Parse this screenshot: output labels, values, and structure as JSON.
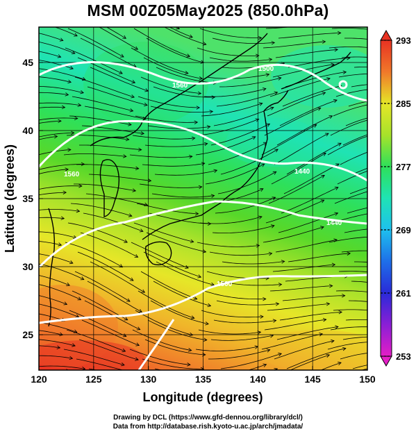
{
  "title": "MSM 00Z05May2025 (850.0hPa)",
  "chart_data": {
    "type": "map",
    "title": "MSM 00Z05May2025 (850.0hPa)",
    "xlabel": "Longitude (degrees)",
    "ylabel": "Latitude  (degrees)",
    "xlim": [
      120,
      150
    ],
    "ylim": [
      22.4,
      47.6
    ],
    "x_ticks": [
      120,
      125,
      130,
      135,
      140,
      145,
      150
    ],
    "x_tick_labels": [
      "120",
      "125",
      "130",
      "135",
      "140",
      "145",
      "150"
    ],
    "y_ticks": [
      25,
      30,
      35,
      40,
      45
    ],
    "y_tick_labels": [
      "25",
      "30",
      "35",
      "40",
      "45"
    ],
    "grid": true,
    "shading": "temperature",
    "colorbar": {
      "min": 253,
      "max": 293,
      "tick_values": [
        253,
        261,
        269,
        277,
        285,
        293
      ],
      "tick_labels": [
        "253",
        "261",
        "269",
        "277",
        "285",
        "293"
      ],
      "colors": [
        "#e41ec6",
        "#8a1fd6",
        "#2a2ad8",
        "#1e6fe8",
        "#1ec0ee",
        "#1fe3b4",
        "#2ee05a",
        "#57d82a",
        "#a7e22a",
        "#e6e628",
        "#f0b52a",
        "#f0782a",
        "#e83222"
      ]
    },
    "contours": {
      "color": "#ffffff",
      "labels": [
        "1560",
        "1500",
        "1440",
        "1440",
        "1500",
        "1560"
      ]
    },
    "vectors": "streamlines"
  },
  "credits": {
    "drawing": "Drawing by DCL (https://www.gfd-dennou.org/library/dcl/)",
    "data": "Data from http://database.rish.kyoto-u.ac.jp/arch/jmadata/"
  }
}
